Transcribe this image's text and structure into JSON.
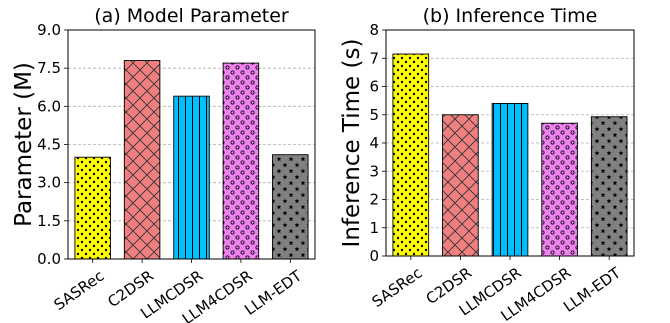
{
  "chart_data": [
    {
      "type": "bar",
      "title": "(a) Model Parameter",
      "ylabel": "Parameter (M)",
      "xlabel": "",
      "categories": [
        "SASRec",
        "C2DSR",
        "LLMCDSR",
        "LLM4CDSR",
        "LLM-EDT"
      ],
      "values": [
        4.0,
        7.8,
        6.4,
        7.7,
        4.1
      ],
      "ylim": [
        0,
        9
      ],
      "yticks": [
        "0.0",
        "1.5",
        "3.0",
        "4.5",
        "6.0",
        "7.5",
        "9.0"
      ],
      "grid": "y-dashed",
      "colors": [
        "#ffff00",
        "#f08080",
        "#00bfff",
        "#ee82ee",
        "#808080"
      ],
      "patterns": [
        "dots",
        "crosshatch",
        "vertical",
        "circles",
        "stars"
      ]
    },
    {
      "type": "bar",
      "title": "(b) Inference Time",
      "ylabel": "Inference Time (s)",
      "xlabel": "",
      "categories": [
        "SASRec",
        "C2DSR",
        "LLMCDSR",
        "LLM4CDSR",
        "LLM-EDT"
      ],
      "values": [
        7.15,
        5.0,
        5.4,
        4.7,
        4.93
      ],
      "ylim": [
        0,
        8
      ],
      "yticks": [
        "0",
        "1",
        "2",
        "3",
        "4",
        "5",
        "6",
        "7",
        "8"
      ],
      "grid": "y-dashed",
      "colors": [
        "#ffff00",
        "#f08080",
        "#00bfff",
        "#ee82ee",
        "#808080"
      ],
      "patterns": [
        "dots",
        "crosshatch",
        "vertical",
        "circles",
        "stars"
      ]
    }
  ]
}
